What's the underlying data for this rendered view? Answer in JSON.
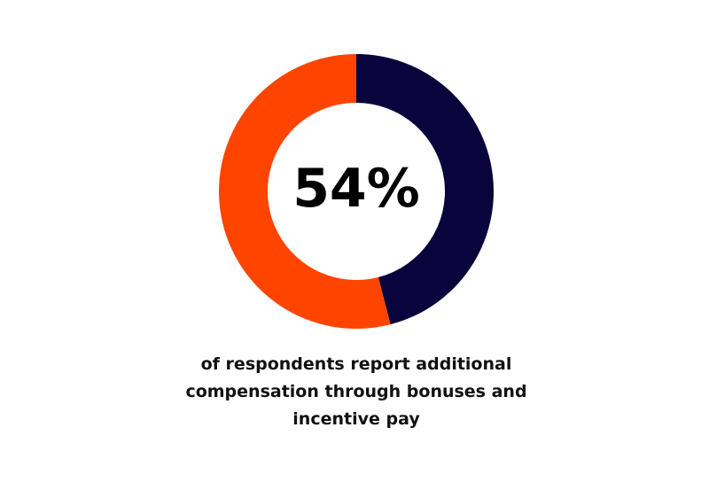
{
  "chart_data": {
    "type": "donut",
    "values": [
      46,
      54
    ],
    "colors": [
      "#0a043c",
      "#ff4400"
    ],
    "value_labels": [
      null,
      "54%"
    ],
    "caption": "of respondents report additional compensation through bonuses and incentive pay"
  }
}
